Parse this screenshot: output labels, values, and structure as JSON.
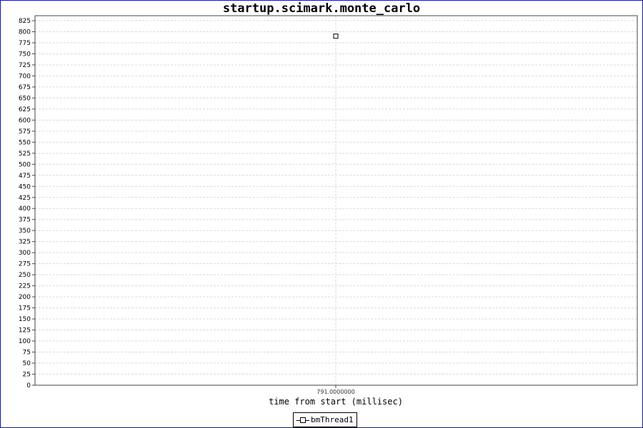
{
  "chart_data": {
    "type": "scatter",
    "title": "startup.scimark.monte_carlo",
    "xlabel": "time from start (millisec)",
    "ylabel": "",
    "x_ticks": [
      "791.0000000"
    ],
    "ylim": [
      0,
      825
    ],
    "y_tick_step": 25,
    "grid": true,
    "legend_position": "bottom-center",
    "series": [
      {
        "name": "bmThread1",
        "x": [
          791.0
        ],
        "y": [
          790
        ]
      }
    ]
  },
  "colors": {
    "frame": "#1a1a8c",
    "grid": "#d9d9d9",
    "axis": "#444444",
    "marker": "#000000"
  }
}
